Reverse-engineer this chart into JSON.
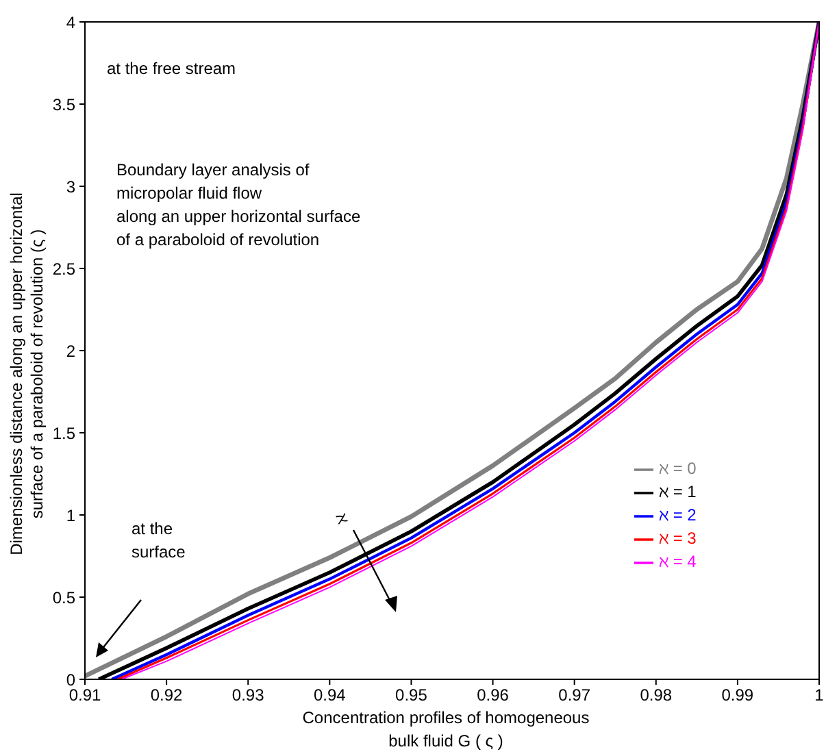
{
  "chart_data": {
    "type": "line",
    "xlabel": "Concentration profiles of homogeneous\nbulk fluid G ( ς )",
    "ylabel": "Dimensionless distance along an upper horizontal\nsurface of a paraboloid of revolution (ς )",
    "xlim": [
      0.91,
      1
    ],
    "xticks": [
      0.91,
      0.92,
      0.93,
      0.94,
      0.95,
      0.96,
      0.97,
      0.98,
      0.99,
      1
    ],
    "ylim": [
      0,
      4
    ],
    "yticks": [
      0,
      0.5,
      1,
      1.5,
      2,
      2.5,
      3,
      3.5,
      4
    ],
    "grid": false,
    "legend": "right",
    "marker": "none",
    "line_style": "solid",
    "annotations": [
      "at the free stream",
      "Boundary layer analysis of\nmicropolar fluid flow\nalong an upper horizontal surface\nof a paraboloid of revolution",
      "at the\nsurface",
      "ℵ"
    ],
    "series": [
      {
        "name": "ℵ = 0",
        "color": "#808080",
        "x": [
          0.91,
          0.92,
          0.93,
          0.94,
          0.95,
          0.96,
          0.97,
          0.975,
          0.98,
          0.985,
          0.99,
          0.993,
          0.996,
          0.998,
          1
        ],
        "values": [
          0.02,
          0.26,
          0.52,
          0.74,
          0.99,
          1.3,
          1.65,
          1.83,
          2.05,
          2.25,
          2.42,
          2.62,
          3.05,
          3.5,
          4
        ]
      },
      {
        "name": "ℵ = 1",
        "color": "#000000",
        "x": [
          0.9117,
          0.92,
          0.93,
          0.94,
          0.95,
          0.96,
          0.97,
          0.975,
          0.98,
          0.985,
          0.99,
          0.993,
          0.996,
          0.998,
          1
        ],
        "values": [
          0,
          0.19,
          0.43,
          0.65,
          0.9,
          1.2,
          1.55,
          1.74,
          1.95,
          2.15,
          2.33,
          2.52,
          2.95,
          3.42,
          4
        ]
      },
      {
        "name": "ℵ = 2",
        "color": "#0000ff",
        "x": [
          0.9133,
          0.92,
          0.93,
          0.94,
          0.95,
          0.96,
          0.97,
          0.975,
          0.98,
          0.985,
          0.99,
          0.993,
          0.996,
          0.998,
          1
        ],
        "values": [
          0,
          0.15,
          0.39,
          0.61,
          0.86,
          1.16,
          1.5,
          1.69,
          1.9,
          2.1,
          2.28,
          2.47,
          2.9,
          3.38,
          4
        ]
      },
      {
        "name": "ℵ = 3",
        "color": "#ff0000",
        "x": [
          0.914,
          0.92,
          0.93,
          0.94,
          0.95,
          0.96,
          0.97,
          0.975,
          0.98,
          0.985,
          0.99,
          0.993,
          0.996,
          0.998,
          1
        ],
        "values": [
          0,
          0.13,
          0.36,
          0.58,
          0.83,
          1.13,
          1.47,
          1.66,
          1.87,
          2.07,
          2.25,
          2.44,
          2.87,
          3.36,
          4
        ]
      },
      {
        "name": "ℵ = 4",
        "color": "#ff00ff",
        "x": [
          0.9145,
          0.92,
          0.93,
          0.94,
          0.95,
          0.96,
          0.97,
          0.975,
          0.98,
          0.985,
          0.99,
          0.993,
          0.996,
          0.998,
          1
        ],
        "values": [
          0,
          0.11,
          0.34,
          0.56,
          0.81,
          1.11,
          1.45,
          1.64,
          1.85,
          2.05,
          2.23,
          2.42,
          2.85,
          3.34,
          4
        ]
      }
    ]
  }
}
